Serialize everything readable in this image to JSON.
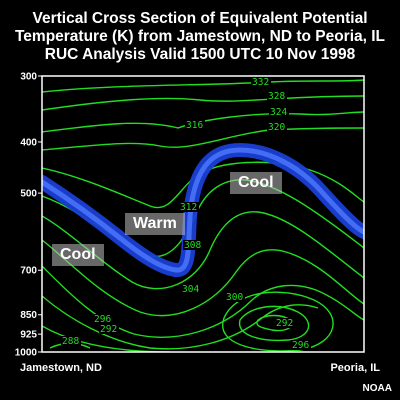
{
  "title": "Vertical Cross Section of Equivalent Potential\nTemperature (K) from Jamestown, ND to Peoria, IL\nRUC Analysis Valid 1500 UTC  10 Nov 1998",
  "chart_data": {
    "type": "contour",
    "title": "Vertical Cross Section of Equivalent Potential Temperature (K) from Jamestown, ND to Peoria, IL RUC Analysis Valid 1500 UTC 10 Nov 1998",
    "y_axis": {
      "ticks": [
        300,
        400,
        500,
        700,
        850,
        925,
        1000
      ],
      "scale": "pressure (inverted)"
    },
    "x_axis": {
      "left_label": "Jamestown, ND",
      "right_label": "Peoria, IL"
    },
    "contour_labels": [
      "332",
      "328",
      "324",
      "320",
      "316",
      "312",
      "308",
      "304",
      "300",
      "296",
      "292",
      "288",
      "296",
      "292"
    ],
    "region_labels": [
      "Warm",
      "Cool",
      "Cool"
    ],
    "line_color": "#22dd22",
    "frontal_zone_color": "#3366ff"
  },
  "x_labels": {
    "left": "Jamestown, ND",
    "right": "Peoria, IL"
  },
  "regions": {
    "warm": "Warm",
    "cool_left": "Cool",
    "cool_right": "Cool"
  },
  "credit": "NOAA"
}
